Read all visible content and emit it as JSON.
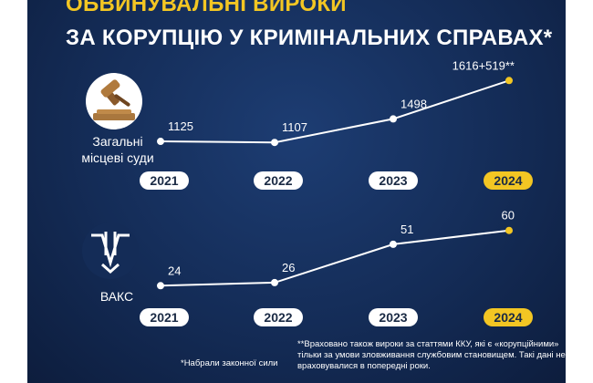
{
  "title": {
    "line1": "ОБВИНУВАЛЬНІ ВИРОКИ",
    "line2": "ЗА КОРУПЦІЮ У КРИМІНАЛЬНИХ СПРАВАХ*"
  },
  "colors": {
    "accent": "#f3c623",
    "background": "#142c57",
    "line": "#ffffff"
  },
  "chart_data": [
    {
      "type": "line",
      "name": "Загальні місцеві суди",
      "label_line1": "Загальні",
      "label_line2": "місцеві суди",
      "icon": "gavel-icon",
      "categories": [
        "2021",
        "2022",
        "2023",
        "2024"
      ],
      "values": [
        1125,
        1107,
        1498,
        2135
      ],
      "value_labels": [
        "1125",
        "1107",
        "1498",
        "1616+519**"
      ],
      "highlight_index": 3,
      "ylim": [
        1050,
        2200
      ]
    },
    {
      "type": "line",
      "name": "ВАКС",
      "label_line1": "ВАКС",
      "icon": "vaks-emblem-icon",
      "categories": [
        "2021",
        "2022",
        "2023",
        "2024"
      ],
      "values": [
        24,
        26,
        51,
        60
      ],
      "value_labels": [
        "24",
        "26",
        "51",
        "60"
      ],
      "highlight_index": 3,
      "ylim": [
        20,
        64
      ]
    }
  ],
  "footnotes": {
    "left": "*Набрали законної сили",
    "right": "**Враховано також вироки за статтями ККУ, які є «корупційними» тільки за умови зловживання службовим становищем. Такі дані не враховувалися в попередні роки."
  }
}
